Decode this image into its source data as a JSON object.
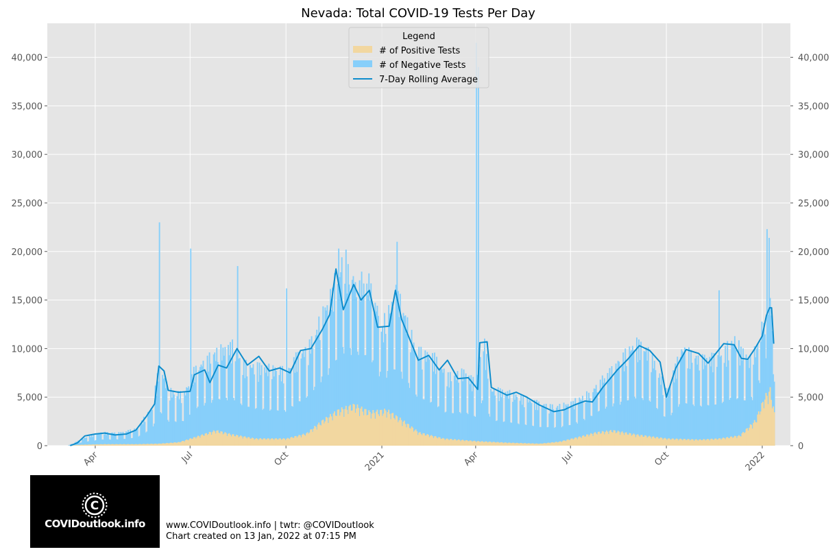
{
  "chart_data": {
    "type": "bar",
    "title": "Nevada: Total COVID-19 Tests Per Day",
    "ylim": [
      0,
      43500
    ],
    "yticks": [
      0,
      5000,
      10000,
      15000,
      20000,
      25000,
      30000,
      35000,
      40000
    ],
    "ytick_labels": [
      "0",
      "5,000",
      "10,000",
      "15,000",
      "20,000",
      "25,000",
      "30,000",
      "35,000",
      "40,000"
    ],
    "xlim": [
      "2020-02-15",
      "2022-01-28"
    ],
    "xticks": [
      {
        "label": "Apr",
        "date": "2020-04-01"
      },
      {
        "label": "Jul",
        "date": "2020-07-01"
      },
      {
        "label": "Oct",
        "date": "2020-10-01"
      },
      {
        "label": "2021",
        "date": "2021-01-01"
      },
      {
        "label": "Apr",
        "date": "2021-04-01"
      },
      {
        "label": "Jul",
        "date": "2021-07-01"
      },
      {
        "label": "Oct",
        "date": "2021-10-01"
      },
      {
        "label": "2022",
        "date": "2022-01-01"
      }
    ],
    "date_range": [
      "2020-03-05",
      "2022-01-12"
    ],
    "stacked": true,
    "grid": true,
    "legend_position": "top-center",
    "legend_title": "Legend",
    "series": [
      {
        "name": "# of Positive Tests",
        "kind": "bar",
        "color": "#f2d7a0",
        "points": [
          [
            "2020-03-05",
            0
          ],
          [
            "2020-03-20",
            100
          ],
          [
            "2020-04-10",
            150
          ],
          [
            "2020-05-10",
            150
          ],
          [
            "2020-06-01",
            200
          ],
          [
            "2020-06-20",
            350
          ],
          [
            "2020-07-10",
            1000
          ],
          [
            "2020-07-25",
            1500
          ],
          [
            "2020-08-10",
            1100
          ],
          [
            "2020-09-01",
            700
          ],
          [
            "2020-10-01",
            700
          ],
          [
            "2020-10-20",
            1200
          ],
          [
            "2020-11-05",
            2500
          ],
          [
            "2020-11-20",
            3500
          ],
          [
            "2020-12-05",
            4000
          ],
          [
            "2020-12-20",
            3300
          ],
          [
            "2021-01-05",
            3500
          ],
          [
            "2021-01-20",
            2500
          ],
          [
            "2021-02-05",
            1300
          ],
          [
            "2021-03-01",
            700
          ],
          [
            "2021-04-01",
            450
          ],
          [
            "2021-05-01",
            300
          ],
          [
            "2021-06-01",
            200
          ],
          [
            "2021-06-20",
            400
          ],
          [
            "2021-07-10",
            900
          ],
          [
            "2021-07-25",
            1300
          ],
          [
            "2021-08-10",
            1500
          ],
          [
            "2021-09-01",
            1100
          ],
          [
            "2021-10-01",
            700
          ],
          [
            "2021-11-01",
            600
          ],
          [
            "2021-11-20",
            700
          ],
          [
            "2021-12-10",
            1000
          ],
          [
            "2021-12-25",
            2500
          ],
          [
            "2022-01-03",
            4800
          ],
          [
            "2022-01-08",
            5500
          ],
          [
            "2022-01-12",
            3200
          ]
        ]
      },
      {
        "name": "# of Negative Tests",
        "kind": "bar",
        "color": "#87cffa",
        "points": [
          [
            "2020-03-05",
            0
          ],
          [
            "2020-03-20",
            600
          ],
          [
            "2020-04-05",
            1100
          ],
          [
            "2020-04-25",
            1100
          ],
          [
            "2020-05-10",
            1500
          ],
          [
            "2020-05-25",
            3500
          ],
          [
            "2020-06-01",
            7500
          ],
          [
            "2020-06-10",
            5000
          ],
          [
            "2020-06-25",
            4500
          ],
          [
            "2020-07-05",
            6500
          ],
          [
            "2020-07-25",
            7500
          ],
          [
            "2020-08-10",
            8500
          ],
          [
            "2020-08-20",
            7000
          ],
          [
            "2020-09-10",
            6800
          ],
          [
            "2020-10-01",
            6500
          ],
          [
            "2020-10-10",
            7500
          ],
          [
            "2020-10-25",
            8500
          ],
          [
            "2020-11-10",
            11000
          ],
          [
            "2020-11-25",
            14500
          ],
          [
            "2020-12-05",
            12000
          ],
          [
            "2020-12-20",
            12500
          ],
          [
            "2021-01-01",
            8000
          ],
          [
            "2021-01-15",
            12000
          ],
          [
            "2021-02-01",
            8000
          ],
          [
            "2021-02-20",
            7500
          ],
          [
            "2021-03-05",
            6000
          ],
          [
            "2021-03-20",
            6500
          ],
          [
            "2021-04-01",
            5500
          ],
          [
            "2021-04-08",
            10000
          ],
          [
            "2021-04-15",
            5000
          ],
          [
            "2021-05-01",
            4800
          ],
          [
            "2021-06-01",
            3800
          ],
          [
            "2021-06-15",
            3400
          ],
          [
            "2021-07-01",
            3400
          ],
          [
            "2021-07-20",
            4000
          ],
          [
            "2021-08-10",
            6000
          ],
          [
            "2021-09-01",
            8800
          ],
          [
            "2021-09-15",
            8000
          ],
          [
            "2021-10-01",
            4400
          ],
          [
            "2021-10-15",
            8600
          ],
          [
            "2021-11-01",
            7700
          ],
          [
            "2021-11-20",
            7800
          ],
          [
            "2021-12-05",
            9300
          ],
          [
            "2021-12-20",
            6300
          ],
          [
            "2022-01-01",
            7500
          ],
          [
            "2022-01-08",
            8500
          ],
          [
            "2022-01-12",
            7000
          ]
        ],
        "spikes": [
          [
            "2020-06-01",
            23000
          ],
          [
            "2020-07-01",
            20300
          ],
          [
            "2020-08-15",
            18500
          ],
          [
            "2020-10-01",
            16200
          ],
          [
            "2020-11-20",
            20300
          ],
          [
            "2021-01-15",
            21000
          ],
          [
            "2021-04-01",
            41500
          ],
          [
            "2021-04-03",
            39000
          ],
          [
            "2021-11-20",
            16000
          ],
          [
            "2022-01-05",
            22300
          ],
          [
            "2022-01-07",
            21400
          ]
        ]
      },
      {
        "name": "7-Day Rolling Average",
        "kind": "line",
        "color": "#0d8ccc",
        "points": [
          [
            "2020-03-08",
            0
          ],
          [
            "2020-03-15",
            300
          ],
          [
            "2020-03-22",
            1000
          ],
          [
            "2020-04-01",
            1200
          ],
          [
            "2020-04-10",
            1300
          ],
          [
            "2020-04-20",
            1100
          ],
          [
            "2020-05-01",
            1200
          ],
          [
            "2020-05-10",
            1600
          ],
          [
            "2020-05-20",
            3000
          ],
          [
            "2020-05-28",
            4300
          ],
          [
            "2020-06-01",
            8200
          ],
          [
            "2020-06-06",
            7700
          ],
          [
            "2020-06-10",
            5700
          ],
          [
            "2020-06-20",
            5500
          ],
          [
            "2020-07-01",
            5600
          ],
          [
            "2020-07-05",
            7300
          ],
          [
            "2020-07-15",
            7800
          ],
          [
            "2020-07-20",
            6500
          ],
          [
            "2020-07-28",
            8300
          ],
          [
            "2020-08-05",
            8000
          ],
          [
            "2020-08-15",
            10000
          ],
          [
            "2020-08-25",
            8300
          ],
          [
            "2020-09-05",
            9200
          ],
          [
            "2020-09-15",
            7700
          ],
          [
            "2020-09-25",
            8000
          ],
          [
            "2020-10-05",
            7500
          ],
          [
            "2020-10-15",
            9800
          ],
          [
            "2020-10-25",
            10000
          ],
          [
            "2020-11-05",
            12000
          ],
          [
            "2020-11-12",
            13500
          ],
          [
            "2020-11-18",
            18200
          ],
          [
            "2020-11-25",
            14000
          ],
          [
            "2020-12-05",
            16600
          ],
          [
            "2020-12-12",
            15000
          ],
          [
            "2020-12-20",
            16000
          ],
          [
            "2020-12-28",
            12200
          ],
          [
            "2021-01-08",
            12300
          ],
          [
            "2021-01-14",
            16000
          ],
          [
            "2021-01-20",
            13000
          ],
          [
            "2021-02-05",
            8800
          ],
          [
            "2021-02-15",
            9300
          ],
          [
            "2021-02-25",
            7800
          ],
          [
            "2021-03-05",
            8800
          ],
          [
            "2021-03-15",
            6900
          ],
          [
            "2021-03-25",
            7000
          ],
          [
            "2021-04-03",
            5800
          ],
          [
            "2021-04-05",
            10600
          ],
          [
            "2021-04-12",
            10700
          ],
          [
            "2021-04-16",
            6000
          ],
          [
            "2021-05-01",
            5200
          ],
          [
            "2021-05-10",
            5500
          ],
          [
            "2021-05-20",
            5000
          ],
          [
            "2021-06-01",
            4200
          ],
          [
            "2021-06-15",
            3500
          ],
          [
            "2021-06-25",
            3700
          ],
          [
            "2021-07-05",
            4200
          ],
          [
            "2021-07-15",
            4600
          ],
          [
            "2021-07-22",
            4500
          ],
          [
            "2021-08-01",
            6000
          ],
          [
            "2021-08-15",
            7800
          ],
          [
            "2021-08-25",
            8900
          ],
          [
            "2021-09-05",
            10300
          ],
          [
            "2021-09-15",
            9800
          ],
          [
            "2021-09-25",
            8600
          ],
          [
            "2021-10-01",
            5000
          ],
          [
            "2021-10-10",
            8000
          ],
          [
            "2021-10-20",
            9900
          ],
          [
            "2021-11-01",
            9500
          ],
          [
            "2021-11-10",
            8500
          ],
          [
            "2021-11-25",
            10500
          ],
          [
            "2021-12-05",
            10400
          ],
          [
            "2021-12-12",
            9000
          ],
          [
            "2021-12-18",
            8900
          ],
          [
            "2021-12-25",
            10000
          ],
          [
            "2022-01-01",
            11300
          ],
          [
            "2022-01-05",
            13400
          ],
          [
            "2022-01-08",
            14200
          ],
          [
            "2022-01-10",
            14200
          ],
          [
            "2022-01-12",
            10500
          ]
        ]
      }
    ]
  },
  "footer": {
    "site_line": "www.COVIDoutlook.info | twtr: @COVIDoutlook",
    "created_line": "Chart created on 13 Jan, 2022 at 07:15 PM"
  },
  "logo": {
    "text": "COVIDoutlook.info",
    "icon": "covid-virus-icon"
  }
}
